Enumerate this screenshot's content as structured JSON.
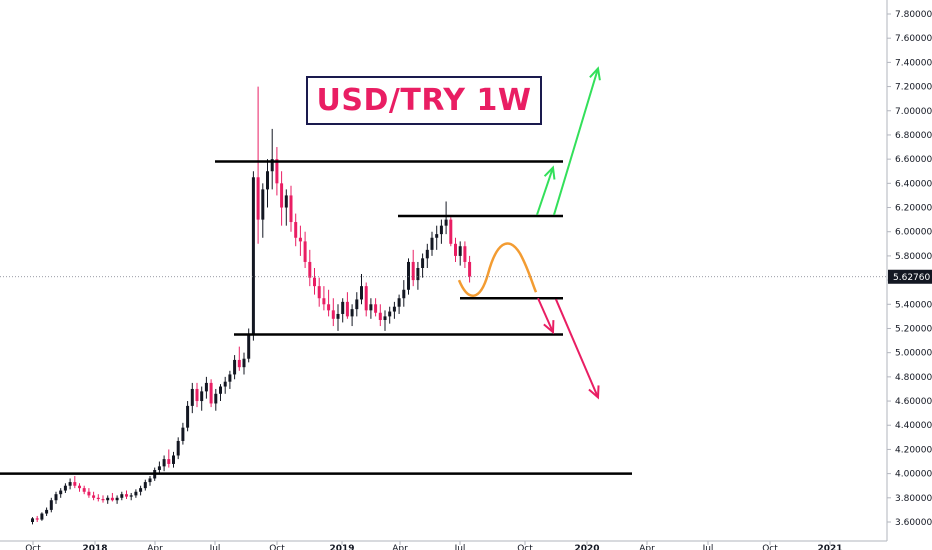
{
  "chart_data": {
    "type": "candlestick",
    "title": "USD/TRY 1W",
    "ylim": [
      3.6,
      7.9
    ],
    "y_ticks": [
      "7.80000",
      "7.60000",
      "7.40000",
      "7.20000",
      "7.00000",
      "6.80000",
      "6.60000",
      "6.40000",
      "6.20000",
      "6.00000",
      "5.80000",
      "5.60000",
      "5.40000",
      "5.20000",
      "5.00000",
      "4.80000",
      "4.60000",
      "4.40000",
      "4.20000",
      "4.00000",
      "3.80000",
      "3.60000"
    ],
    "x_ticks": [
      "Oct",
      "2018",
      "Apr",
      "Jul",
      "Oct",
      "2019",
      "Apr",
      "Jul",
      "Oct",
      "2020",
      "Apr",
      "Jul",
      "Oct",
      "2021"
    ],
    "last_price_label": "5.62760",
    "last_price": 5.6276,
    "candles": [
      [
        3.6,
        3.64,
        3.58,
        3.63
      ],
      [
        3.63,
        3.65,
        3.6,
        3.62
      ],
      [
        3.62,
        3.68,
        3.61,
        3.67
      ],
      [
        3.67,
        3.72,
        3.65,
        3.7
      ],
      [
        3.7,
        3.8,
        3.68,
        3.78
      ],
      [
        3.78,
        3.85,
        3.75,
        3.83
      ],
      [
        3.83,
        3.88,
        3.8,
        3.86
      ],
      [
        3.86,
        3.92,
        3.84,
        3.9
      ],
      [
        3.9,
        3.96,
        3.87,
        3.93
      ],
      [
        3.93,
        3.98,
        3.88,
        3.9
      ],
      [
        3.9,
        3.92,
        3.85,
        3.88
      ],
      [
        3.88,
        3.9,
        3.83,
        3.85
      ],
      [
        3.85,
        3.88,
        3.8,
        3.82
      ],
      [
        3.82,
        3.85,
        3.78,
        3.8
      ],
      [
        3.8,
        3.83,
        3.77,
        3.79
      ],
      [
        3.79,
        3.82,
        3.76,
        3.78
      ],
      [
        3.78,
        3.82,
        3.75,
        3.8
      ],
      [
        3.8,
        3.84,
        3.77,
        3.78
      ],
      [
        3.78,
        3.82,
        3.75,
        3.8
      ],
      [
        3.8,
        3.85,
        3.78,
        3.83
      ],
      [
        3.83,
        3.86,
        3.79,
        3.81
      ],
      [
        3.81,
        3.84,
        3.78,
        3.82
      ],
      [
        3.82,
        3.87,
        3.8,
        3.85
      ],
      [
        3.85,
        3.9,
        3.82,
        3.88
      ],
      [
        3.88,
        3.95,
        3.86,
        3.93
      ],
      [
        3.93,
        3.98,
        3.9,
        3.96
      ],
      [
        3.96,
        4.05,
        3.94,
        4.03
      ],
      [
        4.03,
        4.1,
        4.0,
        4.06
      ],
      [
        4.06,
        4.15,
        4.02,
        4.12
      ],
      [
        4.12,
        4.2,
        4.05,
        4.08
      ],
      [
        4.08,
        4.18,
        4.05,
        4.15
      ],
      [
        4.15,
        4.3,
        4.12,
        4.27
      ],
      [
        4.27,
        4.42,
        4.24,
        4.38
      ],
      [
        4.38,
        4.6,
        4.35,
        4.56
      ],
      [
        4.56,
        4.75,
        4.5,
        4.7
      ],
      [
        4.7,
        4.75,
        4.55,
        4.6
      ],
      [
        4.6,
        4.72,
        4.52,
        4.68
      ],
      [
        4.68,
        4.8,
        4.62,
        4.75
      ],
      [
        4.75,
        4.78,
        4.55,
        4.58
      ],
      [
        4.58,
        4.7,
        4.52,
        4.66
      ],
      [
        4.66,
        4.74,
        4.6,
        4.72
      ],
      [
        4.72,
        4.8,
        4.66,
        4.76
      ],
      [
        4.76,
        4.85,
        4.7,
        4.82
      ],
      [
        4.82,
        4.98,
        4.78,
        4.94
      ],
      [
        4.94,
        5.05,
        4.85,
        4.88
      ],
      [
        4.88,
        5.0,
        4.82,
        4.95
      ],
      [
        4.95,
        5.2,
        4.92,
        5.15
      ],
      [
        5.15,
        6.5,
        5.1,
        6.45
      ],
      [
        6.45,
        7.2,
        5.9,
        6.1
      ],
      [
        6.1,
        6.4,
        5.95,
        6.35
      ],
      [
        6.35,
        6.6,
        6.2,
        6.5
      ],
      [
        6.5,
        6.85,
        6.35,
        6.6
      ],
      [
        6.6,
        6.7,
        6.3,
        6.4
      ],
      [
        6.4,
        6.5,
        6.05,
        6.2
      ],
      [
        6.2,
        6.35,
        6.05,
        6.3
      ],
      [
        6.3,
        6.38,
        6.0,
        6.08
      ],
      [
        6.08,
        6.15,
        5.88,
        5.95
      ],
      [
        5.95,
        6.05,
        5.8,
        5.92
      ],
      [
        5.92,
        6.0,
        5.7,
        5.75
      ],
      [
        5.75,
        5.85,
        5.55,
        5.62
      ],
      [
        5.62,
        5.7,
        5.48,
        5.55
      ],
      [
        5.55,
        5.62,
        5.38,
        5.45
      ],
      [
        5.45,
        5.55,
        5.35,
        5.4
      ],
      [
        5.4,
        5.52,
        5.3,
        5.35
      ],
      [
        5.35,
        5.45,
        5.22,
        5.28
      ],
      [
        5.28,
        5.4,
        5.18,
        5.32
      ],
      [
        5.32,
        5.45,
        5.25,
        5.42
      ],
      [
        5.42,
        5.5,
        5.28,
        5.3
      ],
      [
        5.3,
        5.4,
        5.22,
        5.36
      ],
      [
        5.36,
        5.5,
        5.3,
        5.44
      ],
      [
        5.44,
        5.65,
        5.4,
        5.55
      ],
      [
        5.55,
        5.58,
        5.3,
        5.35
      ],
      [
        5.35,
        5.45,
        5.28,
        5.4
      ],
      [
        5.4,
        5.45,
        5.3,
        5.33
      ],
      [
        5.33,
        5.4,
        5.22,
        5.27
      ],
      [
        5.27,
        5.35,
        5.18,
        5.3
      ],
      [
        5.3,
        5.38,
        5.24,
        5.34
      ],
      [
        5.34,
        5.42,
        5.28,
        5.38
      ],
      [
        5.38,
        5.48,
        5.32,
        5.45
      ],
      [
        5.45,
        5.6,
        5.38,
        5.52
      ],
      [
        5.52,
        5.78,
        5.48,
        5.75
      ],
      [
        5.75,
        5.85,
        5.55,
        5.6
      ],
      [
        5.6,
        5.75,
        5.52,
        5.7
      ],
      [
        5.7,
        5.82,
        5.62,
        5.78
      ],
      [
        5.78,
        5.9,
        5.7,
        5.85
      ],
      [
        5.85,
        6.0,
        5.8,
        5.95
      ],
      [
        5.95,
        6.05,
        5.85,
        5.98
      ],
      [
        5.98,
        6.1,
        5.9,
        6.05
      ],
      [
        6.05,
        6.25,
        5.98,
        6.1
      ],
      [
        6.1,
        6.12,
        5.88,
        5.9
      ],
      [
        5.9,
        5.95,
        5.75,
        5.8
      ],
      [
        5.8,
        5.92,
        5.72,
        5.88
      ],
      [
        5.88,
        5.92,
        5.7,
        5.75
      ],
      [
        5.75,
        5.8,
        5.58,
        5.63
      ]
    ],
    "horizontal_levels": [
      {
        "y": 6.58,
        "from": "2018-07",
        "to": "2019-11"
      },
      {
        "y": 6.13,
        "from": "2019-03",
        "to": "2019-11"
      },
      {
        "y": 5.45,
        "from": "2019-07",
        "to": "2019-11"
      },
      {
        "y": 5.15,
        "from": "2018-08",
        "to": "2019-11"
      },
      {
        "y": 4.0,
        "from": "2017-07",
        "to": "2020-04"
      }
    ],
    "colors": {
      "up": "#131722",
      "down": "#e91e63",
      "level_line": "#000000",
      "bull_arrow": "#33e05a",
      "bear_arrow": "#e91e63",
      "projection_curve": "#f39c32",
      "last_price_line": "#787b86"
    }
  }
}
